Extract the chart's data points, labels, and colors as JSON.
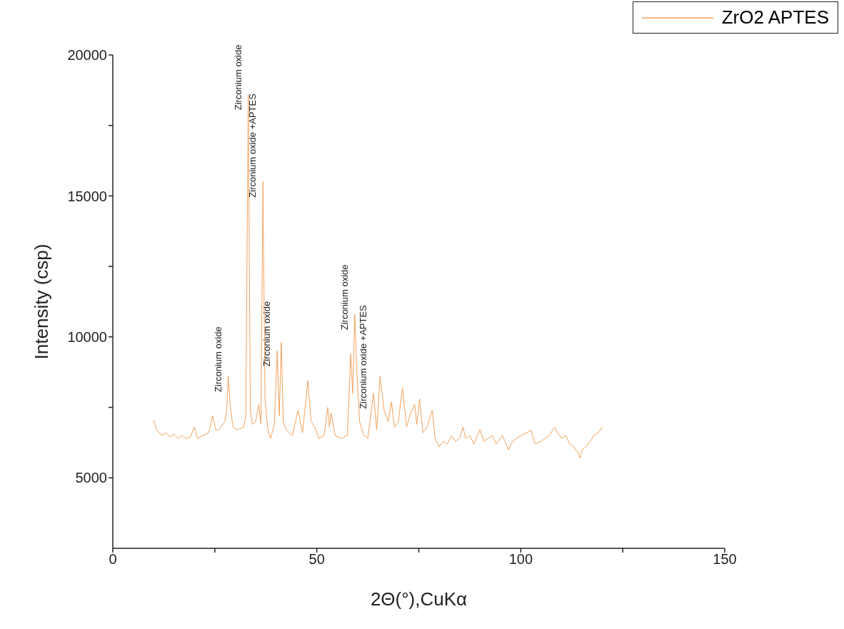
{
  "chart_data": {
    "type": "line",
    "xlabel": "2Θ(°),CuKα",
    "ylabel": "Intensity (csp)",
    "xlim": [
      0,
      150
    ],
    "ylim": [
      2500,
      20000
    ],
    "xticks": [
      0,
      {
        "value": 25,
        "label": null
      },
      50,
      {
        "value": 75,
        "label": null
      },
      100,
      {
        "value": 125,
        "label": null
      },
      150
    ],
    "yticks": [
      5000,
      {
        "value": 7500,
        "label": null
      },
      10000,
      {
        "value": 12500,
        "label": null
      },
      15000,
      {
        "value": 17500,
        "label": null
      },
      20000
    ],
    "legend": "top right",
    "grid": false,
    "marker": "none",
    "line_style": "solid",
    "series": [
      {
        "name": "ZrO2 APTES",
        "color": "#f2a25c",
        "x": [
          10,
          10.8,
          12,
          13,
          14,
          15,
          16,
          17,
          18,
          19,
          20,
          20.8,
          22,
          23.5,
          24.5,
          25.2,
          26,
          27,
          27.5,
          27.9,
          28.3,
          28.8,
          29.5,
          30.5,
          32,
          32.6,
          33.2,
          33.7,
          34.2,
          35,
          35.8,
          36.3,
          36.8,
          37.3,
          38,
          38.7,
          39.6,
          40.3,
          40.8,
          41.3,
          41.8,
          42.5,
          44,
          45.4,
          46.5,
          47.8,
          48.6,
          49.5,
          50.5,
          51.8,
          52.7,
          53.1,
          53.5,
          54.5,
          56,
          57.5,
          58.3,
          58.8,
          59.3,
          59.8,
          60.5,
          61.5,
          62.5,
          63.9,
          64.7,
          65.5,
          66.5,
          67.5,
          68.3,
          69,
          70,
          71,
          72,
          73,
          74,
          74.5,
          75.2,
          76,
          77,
          78.3,
          79,
          80,
          81,
          82,
          83,
          84,
          85,
          85.8,
          86.5,
          87.5,
          88.5,
          90,
          91,
          92,
          93,
          94,
          95.5,
          97,
          98,
          99,
          100,
          101.5,
          102.5,
          103.5,
          105,
          106,
          107,
          108.3,
          109,
          110,
          111,
          112,
          113,
          114,
          114.5,
          115,
          116,
          117,
          118,
          119,
          120
        ],
        "values": [
          7050,
          6700,
          6500,
          6600,
          6450,
          6550,
          6400,
          6500,
          6400,
          6450,
          6800,
          6400,
          6500,
          6600,
          7200,
          6700,
          6700,
          6900,
          7000,
          7400,
          8600,
          7500,
          6800,
          6700,
          6800,
          7200,
          18600,
          7400,
          6900,
          7000,
          7600,
          6900,
          15500,
          7800,
          6700,
          6400,
          6900,
          9500,
          7200,
          9800,
          7000,
          6700,
          6500,
          7400,
          6600,
          8450,
          7000,
          6800,
          6400,
          6500,
          7500,
          6800,
          7300,
          6500,
          6400,
          6500,
          9400,
          8000,
          10800,
          8800,
          7000,
          6500,
          6400,
          8000,
          6700,
          8600,
          7400,
          7000,
          7700,
          6800,
          7000,
          8200,
          6800,
          7300,
          7600,
          6900,
          7800,
          6600,
          6800,
          7400,
          6400,
          6100,
          6300,
          6200,
          6500,
          6300,
          6400,
          6800,
          6400,
          6500,
          6200,
          6700,
          6300,
          6400,
          6500,
          6200,
          6500,
          6000,
          6300,
          6400,
          6500,
          6600,
          6700,
          6200,
          6300,
          6400,
          6500,
          6800,
          6600,
          6400,
          6500,
          6200,
          6100,
          5900,
          5700,
          6000,
          6100,
          6300,
          6500,
          6600,
          6800
        ]
      }
    ],
    "annotations": [
      {
        "text": "Zirconium oxide",
        "x": 28.3,
        "y": 8600
      },
      {
        "text": "Zirconium oxide",
        "x": 33.2,
        "y": 18600
      },
      {
        "text": "Zirconium oxide +APTES",
        "x": 36.8,
        "y": 15500
      },
      {
        "text": "Zirconium oxide",
        "x": 40.3,
        "y": 9500
      },
      {
        "text": "Zirconium oxide",
        "x": 59.3,
        "y": 10800
      },
      {
        "text": "Zirconium oxide +APTES",
        "x": 63.9,
        "y": 8000
      }
    ]
  }
}
